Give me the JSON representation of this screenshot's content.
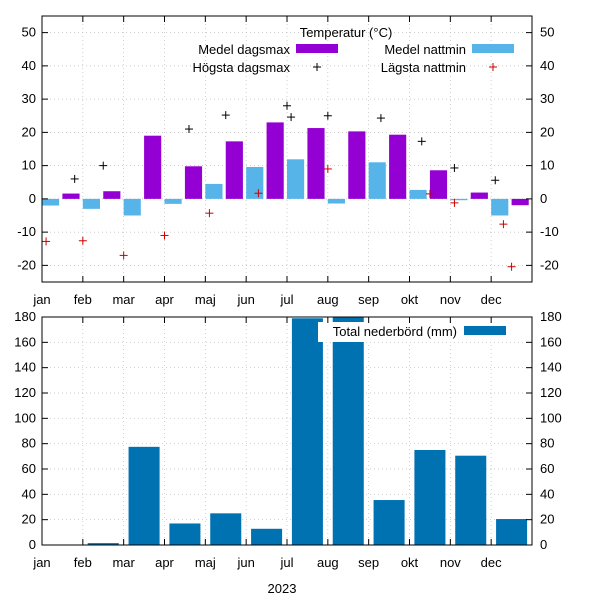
{
  "chart_data": [
    {
      "type": "bar",
      "title": "Temperatur (°C)",
      "categories": [
        "jan",
        "feb",
        "mar",
        "apr",
        "maj",
        "jun",
        "jul",
        "aug",
        "sep",
        "okt",
        "nov",
        "dec"
      ],
      "ylim": [
        -25,
        55
      ],
      "yticks": [
        -20,
        -10,
        0,
        10,
        20,
        30,
        40,
        50
      ],
      "grid": true,
      "legend_position": "top-right",
      "series": [
        {
          "name": "Medel dagsmax",
          "kind": "bar",
          "color": "#9400d3",
          "values": [
            1.6,
            2.3,
            19.0,
            9.8,
            17.3,
            23.0,
            21.3,
            20.3,
            19.3,
            8.6,
            1.9,
            -1.9
          ]
        },
        {
          "name": "Medel nattmin",
          "kind": "bar",
          "color": "#56b4e9",
          "values": [
            -2.0,
            -3.0,
            -5.0,
            -1.5,
            4.5,
            9.6,
            11.9,
            -1.4,
            11.0,
            2.7,
            -0.4,
            -5.0
          ]
        },
        {
          "name": "Högsta dagsmax",
          "kind": "point",
          "marker": "+",
          "color": "#000000",
          "points": [
            [
              0.8,
              6.0
            ],
            [
              1.5,
              10.0
            ],
            [
              3.6,
              21.0
            ],
            [
              4.5,
              25.2
            ],
            [
              6.0,
              28.0
            ],
            [
              6.1,
              24.6
            ],
            [
              7.0,
              25.0
            ],
            [
              8.3,
              24.3
            ],
            [
              9.3,
              17.3
            ],
            [
              10.1,
              9.3
            ],
            [
              11.1,
              5.6
            ]
          ]
        },
        {
          "name": "Lägsta nattmin",
          "kind": "point",
          "marker": "+",
          "color": "#cc0000",
          "points": [
            [
              0.1,
              -12.8
            ],
            [
              1.0,
              -12.6
            ],
            [
              2.0,
              -17.0
            ],
            [
              3.0,
              -11.0
            ],
            [
              4.1,
              -4.3
            ],
            [
              5.3,
              1.7
            ],
            [
              7.0,
              9.0
            ],
            [
              9.5,
              1.5
            ],
            [
              10.1,
              -1.2
            ],
            [
              11.3,
              -7.6
            ],
            [
              11.5,
              -20.4
            ]
          ]
        }
      ]
    },
    {
      "type": "bar",
      "title": "Total nederbörd (mm)",
      "xlabel": "2023",
      "categories": [
        "jan",
        "feb",
        "mar",
        "apr",
        "maj",
        "jun",
        "jul",
        "aug",
        "sep",
        "okt",
        "nov",
        "dec"
      ],
      "ylim": [
        0,
        180
      ],
      "yticks": [
        0,
        20,
        40,
        60,
        80,
        100,
        120,
        140,
        160,
        180
      ],
      "grid": true,
      "legend_position": "top-right",
      "series": [
        {
          "name": "Total nederbörd (mm)",
          "color": "#0072b2",
          "values": [
            0,
            1.5,
            77.5,
            17.0,
            25.0,
            12.8,
            179.0,
            180.0,
            35.5,
            75.0,
            70.5,
            20.5
          ]
        }
      ]
    }
  ]
}
